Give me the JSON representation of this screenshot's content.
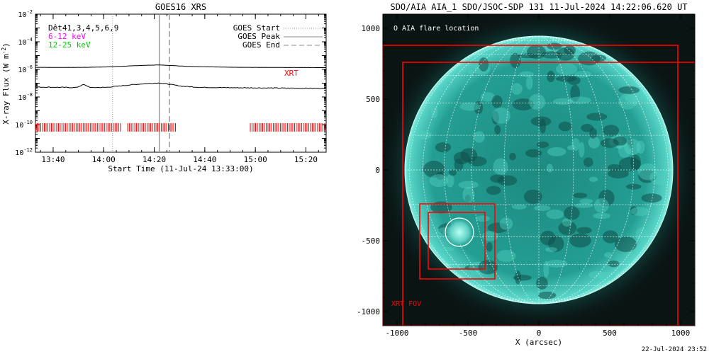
{
  "chart_data": [
    {
      "type": "line",
      "title": "GOES16 XRS",
      "xlabel": "Start Time (11-Jul-24 13:33:00)",
      "ylabel": "X-ray Flux (W m",
      "ylabel_sup": "-2",
      "ylabel_close": ")",
      "y_scale": "log",
      "ylim_exp": [
        -12,
        -2
      ],
      "y_tick_exponents": [
        -12,
        -10,
        -8,
        -6,
        -4,
        -2
      ],
      "xlim_minutes": [
        0,
        115
      ],
      "x_ticks": [
        {
          "label": "13:40",
          "minute": 7
        },
        {
          "label": "14:00",
          "minute": 27
        },
        {
          "label": "14:20",
          "minute": 47
        },
        {
          "label": "14:40",
          "minute": 67
        },
        {
          "label": "15:00",
          "minute": 87
        },
        {
          "label": "15:20",
          "minute": 107
        }
      ],
      "legend_left": {
        "line1": "Dêt41,3,4,5,6,9",
        "line2": "6-12 keV",
        "line3": "12-25 keV",
        "line2_color": "#ff00ff",
        "line3_color": "#00cc00"
      },
      "legend_right": [
        "GOES Start",
        "GOES Peak",
        "GOES End"
      ],
      "event_lines": {
        "start_minute": 30.5,
        "peak_minute": 49,
        "end_minute": 53
      },
      "xrt_label": "XRT",
      "xrt_label_color": "#ff0000",
      "series": [
        {
          "band": "long",
          "color": "#000000",
          "points": [
            [
              0,
              -5.85
            ],
            [
              10,
              -5.86
            ],
            [
              20,
              -5.85
            ],
            [
              28,
              -5.82
            ],
            [
              36,
              -5.76
            ],
            [
              44,
              -5.7
            ],
            [
              49,
              -5.68
            ],
            [
              54,
              -5.72
            ],
            [
              60,
              -5.78
            ],
            [
              70,
              -5.82
            ],
            [
              80,
              -5.85
            ],
            [
              95,
              -5.86
            ],
            [
              115,
              -5.87
            ]
          ]
        },
        {
          "band": "short",
          "color": "#000000",
          "points": [
            [
              0,
              -7.28
            ],
            [
              10,
              -7.3
            ],
            [
              16,
              -7.32
            ],
            [
              19,
              -7.1
            ],
            [
              22,
              -7.32
            ],
            [
              28,
              -7.3
            ],
            [
              36,
              -7.15
            ],
            [
              42,
              -7.05
            ],
            [
              49,
              -6.98
            ],
            [
              53,
              -7.08
            ],
            [
              58,
              -7.22
            ],
            [
              65,
              -7.3
            ],
            [
              80,
              -7.33
            ],
            [
              95,
              -7.35
            ],
            [
              115,
              -7.38
            ]
          ]
        }
      ],
      "xrt_coverage_segments": [
        [
          0,
          34
        ],
        [
          36.5,
          56
        ],
        [
          85,
          115
        ]
      ],
      "xrt_bar_color": "#ff0000",
      "xrt_bar_level_exp": -10.2
    },
    {
      "type": "image",
      "title": "SDO/AIA AIA_1 SDO/JSOC-SDP 131 11-Jul-2024 14:22:06.620 UT",
      "xlabel": "X (arcsec)",
      "xlim": [
        -1100,
        1100
      ],
      "ylim": [
        -1100,
        1100
      ],
      "x_ticks": [
        -1000,
        -500,
        0,
        500,
        1000
      ],
      "y_ticks": [
        -1000,
        -500,
        0,
        500,
        1000
      ],
      "legend": "O AIA flare location",
      "fov_label": "XRT FOV",
      "fov_color": "#ff0000",
      "solar_radius": 945,
      "disk_color": "#25a59a",
      "background_color": "#0a1413",
      "grid_color": "#ffffff",
      "flare_location": [
        -560,
        -440
      ],
      "flare_circle_radius": 100,
      "xrt_fov_boxes": [
        {
          "x0": -1100,
          "y0": -1100,
          "x1": 980,
          "y1": 880
        },
        {
          "x0": -960,
          "y0": -1100,
          "x1": 1100,
          "y1": 760
        },
        {
          "x0": -840,
          "y0": -770,
          "x1": -310,
          "y1": -240
        },
        {
          "x0": -780,
          "y0": -700,
          "x1": -380,
          "y1": -300
        }
      ]
    }
  ],
  "footer_timestamp": "22-Jul-2024 23:52"
}
